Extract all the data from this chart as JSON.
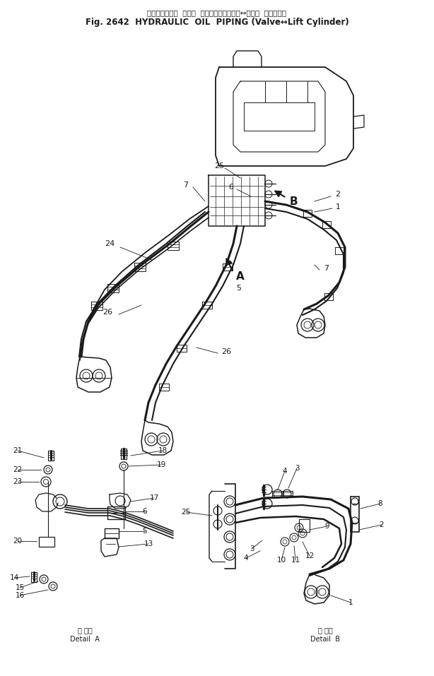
{
  "title_jp": "ハイドロリック  オイル  パイピング（バルブ↔リフト  シリンダ）",
  "title_en": "Fig. 2642  HYDRAULIC  OIL  PIPING (Valve↔Lift Cylinder)",
  "bg_color": "#ffffff",
  "line_color": "#1a1a1a",
  "detail_a_label_jp": "Ａ 詳細",
  "detail_a_label_en": "Detail  A",
  "detail_b_label_jp": "Ｂ 詳細",
  "detail_b_label_en": "Detail  B",
  "figsize": [
    6.14,
    9.57
  ],
  "dpi": 100
}
